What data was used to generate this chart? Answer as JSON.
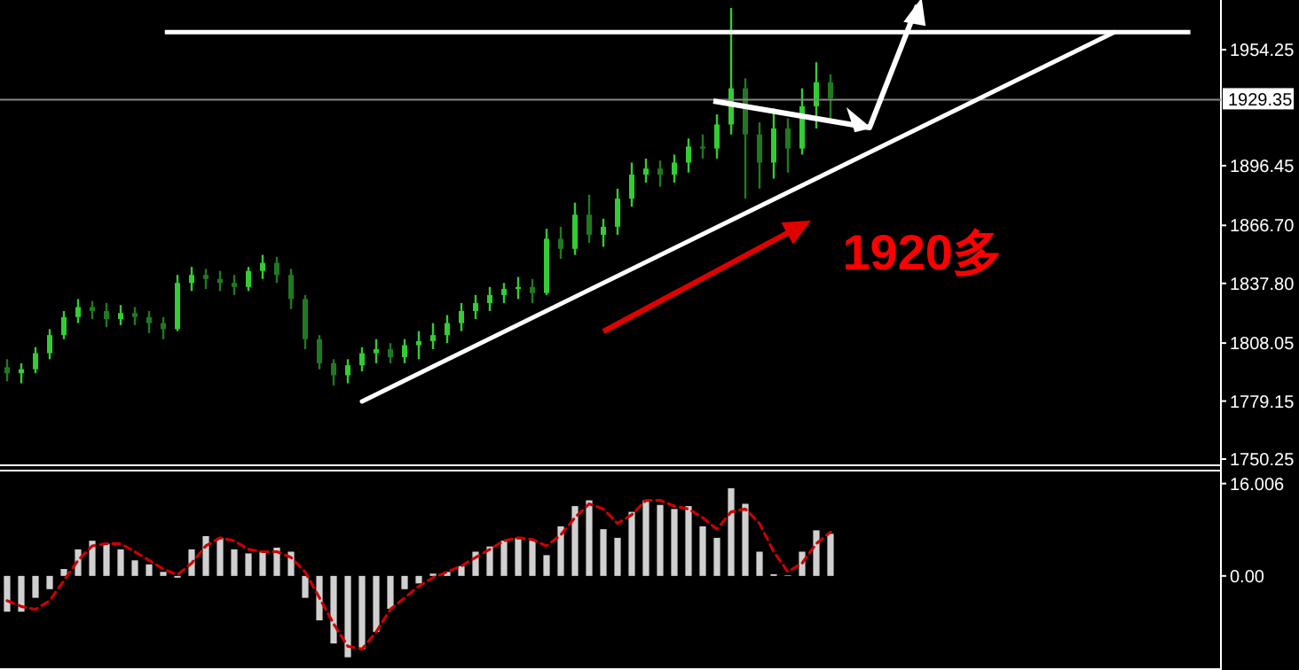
{
  "chart_data": [
    {
      "type": "candlestick",
      "tick_labels": "y",
      "colors": [
        "#1f7a1f",
        "#33cc33",
        "#33cc33",
        "#33cc33",
        "#33cc33",
        "#33cc33",
        "#1f7a1f",
        "#1f7a1f",
        "#33cc33",
        "#1f7a1f",
        "#1f7a1f",
        "#1f7a1f",
        "#33cc33",
        "#33cc33",
        "#1f7a1f",
        "#1f7a1f",
        "#1f7a1f",
        "#33cc33",
        "#33cc33",
        "#1f7a1f",
        "#1f7a1f",
        "#1f7a1f",
        "#1f7a1f",
        "#1f7a1f",
        "#33cc33",
        "#33cc33",
        "#33cc33",
        "#1f7a1f",
        "#33cc33",
        "#33cc33",
        "#33cc33",
        "#33cc33",
        "#33cc33",
        "#33cc33",
        "#33cc33",
        "#33cc33",
        "#33cc33",
        "#1f7a1f",
        "#33cc33",
        "#1f7a1f",
        "#33cc33",
        "#1f7a1f",
        "#33cc33",
        "#33cc33",
        "#33cc33",
        "#33cc33",
        "#1f7a1f",
        "#33cc33",
        "#33cc33",
        "#1f7a1f",
        "#33cc33",
        "#33cc33",
        "#1f7a1f",
        "#1f7a1f",
        "#33cc33",
        "#1f7a1f",
        "#33cc33",
        "#33cc33",
        "#1f7a1f",
        null,
        null,
        null,
        null,
        null,
        null,
        null,
        null,
        null,
        null,
        null,
        null,
        null,
        null,
        null,
        null,
        null,
        null,
        null,
        null,
        null,
        null,
        null,
        null,
        null,
        null,
        null
      ],
      "categories": [
        null,
        null,
        null,
        null,
        null,
        null,
        null,
        null,
        null,
        null,
        null,
        null,
        null,
        null,
        null,
        null,
        null,
        null,
        null,
        null,
        null,
        null,
        null,
        null,
        null,
        null,
        null,
        null,
        null,
        null,
        null,
        null,
        null,
        null,
        null,
        null,
        null,
        null,
        null,
        null,
        null,
        null,
        null,
        null,
        null,
        null,
        null,
        null,
        null,
        null,
        null,
        null,
        null,
        null,
        null,
        null,
        null,
        null,
        null,
        null,
        null,
        null,
        null,
        null,
        null,
        null,
        null,
        null,
        null,
        null,
        null,
        null,
        null,
        null,
        null,
        null,
        null,
        null,
        null,
        null,
        null,
        null,
        null,
        null,
        null,
        null
      ],
      "ohlc": [
        [
          1796,
          1800,
          1789,
          1793
        ],
        [
          1793,
          1798,
          1788,
          1795
        ],
        [
          1795,
          1806,
          1793,
          1803
        ],
        [
          1803,
          1815,
          1800,
          1812
        ],
        [
          1812,
          1824,
          1810,
          1821
        ],
        [
          1821,
          1830,
          1818,
          1826
        ],
        [
          1826,
          1829,
          1820,
          1824
        ],
        [
          1824,
          1828,
          1816,
          1820
        ],
        [
          1820,
          1827,
          1817,
          1823
        ],
        [
          1823,
          1826,
          1817,
          1821
        ],
        [
          1821,
          1824,
          1813,
          1818
        ],
        [
          1818,
          1821,
          1810,
          1815
        ],
        [
          1815,
          1842,
          1814,
          1838
        ],
        [
          1838,
          1846,
          1834,
          1842
        ],
        [
          1842,
          1845,
          1835,
          1840
        ],
        [
          1840,
          1844,
          1834,
          1838
        ],
        [
          1838,
          1842,
          1832,
          1836
        ],
        [
          1836,
          1846,
          1834,
          1844
        ],
        [
          1844,
          1852,
          1840,
          1848
        ],
        [
          1848,
          1851,
          1838,
          1842
        ],
        [
          1842,
          1845,
          1825,
          1830
        ],
        [
          1830,
          1832,
          1805,
          1810
        ],
        [
          1810,
          1812,
          1795,
          1798
        ],
        [
          1798,
          1800,
          1787,
          1792
        ],
        [
          1792,
          1800,
          1788,
          1797
        ],
        [
          1797,
          1806,
          1794,
          1803
        ],
        [
          1803,
          1810,
          1798,
          1805
        ],
        [
          1805,
          1808,
          1798,
          1801
        ],
        [
          1801,
          1810,
          1798,
          1807
        ],
        [
          1807,
          1814,
          1800,
          1809
        ],
        [
          1809,
          1818,
          1805,
          1812
        ],
        [
          1812,
          1822,
          1808,
          1818
        ],
        [
          1818,
          1828,
          1814,
          1824
        ],
        [
          1824,
          1832,
          1820,
          1828
        ],
        [
          1828,
          1836,
          1824,
          1832
        ],
        [
          1832,
          1838,
          1828,
          1835
        ],
        [
          1835,
          1841,
          1830,
          1836
        ],
        [
          1836,
          1840,
          1828,
          1833
        ],
        [
          1833,
          1865,
          1832,
          1860
        ],
        [
          1860,
          1866,
          1850,
          1855
        ],
        [
          1855,
          1878,
          1852,
          1872
        ],
        [
          1872,
          1882,
          1858,
          1862
        ],
        [
          1862,
          1870,
          1856,
          1866
        ],
        [
          1866,
          1885,
          1862,
          1880
        ],
        [
          1880,
          1898,
          1876,
          1892
        ],
        [
          1892,
          1900,
          1888,
          1895
        ],
        [
          1895,
          1899,
          1886,
          1892
        ],
        [
          1892,
          1902,
          1888,
          1898
        ],
        [
          1898,
          1910,
          1893,
          1906
        ],
        [
          1906,
          1912,
          1900,
          1905
        ],
        [
          1905,
          1922,
          1900,
          1917
        ],
        [
          1917,
          1975,
          1912,
          1935
        ],
        [
          1935,
          1940,
          1880,
          1912
        ],
        [
          1912,
          1918,
          1885,
          1898
        ],
        [
          1898,
          1925,
          1890,
          1915
        ],
        [
          1915,
          1920,
          1893,
          1905
        ],
        [
          1905,
          1935,
          1902,
          1926
        ],
        [
          1926,
          1948,
          1915,
          1938
        ],
        [
          1938,
          1942,
          1920,
          1930
        ],
        null,
        null,
        null,
        null,
        null,
        null,
        null,
        null,
        null,
        null,
        null,
        null,
        null,
        null,
        null,
        null,
        null,
        null,
        null,
        null,
        null,
        null,
        null,
        null,
        null,
        null,
        null
      ],
      "ylim": [
        1747.6,
        1979
      ],
      "yticks": [
        {
          "value": 1750.25,
          "label": "1750.25"
        },
        {
          "value": 1779.15,
          "label": "1779.15"
        },
        {
          "value": 1808.05,
          "label": "1808.05"
        },
        {
          "value": 1837.8,
          "label": "1837.80"
        },
        {
          "value": 1866.7,
          "label": "1866.70"
        },
        {
          "value": 1896.45,
          "label": "1896.45"
        },
        {
          "value": 1954.25,
          "label": "1954.25"
        }
      ],
      "ref_lines": [
        {
          "axis": "y",
          "value": 1929.35,
          "label": "1929.35",
          "color": "#888888"
        },
        {
          "axis": "y",
          "value": 1963,
          "color": "#ffffff"
        }
      ],
      "annotations": [
        "1920多"
      ]
    },
    {
      "type": "line",
      "color": "#ffffff",
      "tick_labels": false,
      "categories": [
        null,
        null,
        null,
        null,
        null,
        null,
        null,
        null,
        null,
        null,
        null,
        null,
        null,
        null,
        null,
        null,
        null,
        null,
        null,
        null,
        null,
        null,
        null,
        null,
        null,
        null,
        null,
        null,
        null,
        null,
        null,
        null,
        null,
        null,
        null,
        null,
        null,
        null,
        null,
        null,
        null,
        null,
        null,
        null,
        null,
        null,
        null,
        null,
        null,
        null,
        null,
        null,
        null,
        null,
        null,
        null,
        null,
        null,
        null,
        null,
        null,
        null,
        null,
        null,
        null,
        null,
        null,
        null,
        null,
        null,
        null,
        null,
        null,
        null,
        null,
        null,
        null,
        null,
        null,
        null,
        null,
        null,
        null,
        null,
        null,
        null
      ],
      "values": [
        null,
        null,
        null,
        null,
        null,
        null,
        null,
        null,
        null,
        null,
        null,
        null,
        null,
        null,
        null,
        null,
        null,
        null,
        null,
        null,
        null,
        null,
        null,
        null,
        null,
        1779,
        null,
        null,
        null,
        null,
        null,
        null,
        null,
        null,
        null,
        null,
        null,
        null,
        null,
        null,
        null,
        null,
        null,
        null,
        null,
        null,
        null,
        null,
        null,
        null,
        null,
        null,
        null,
        null,
        null,
        null,
        null,
        null,
        null,
        null,
        null,
        null,
        null,
        null,
        null,
        null,
        null,
        null,
        null,
        null,
        null,
        null,
        null,
        null,
        null,
        null,
        null,
        null,
        1963,
        null,
        null,
        null,
        null,
        null,
        null,
        null
      ],
      "ylim": [
        1747.6,
        1979
      ]
    },
    {
      "type": "bar",
      "color": "#d0d0d0",
      "tick_labels": "y",
      "categories": [
        null,
        null,
        null,
        null,
        null,
        null,
        null,
        null,
        null,
        null,
        null,
        null,
        null,
        null,
        null,
        null,
        null,
        null,
        null,
        null,
        null,
        null,
        null,
        null,
        null,
        null,
        null,
        null,
        null,
        null,
        null,
        null,
        null,
        null,
        null,
        null,
        null,
        null,
        null,
        null,
        null,
        null,
        null,
        null,
        null,
        null,
        null,
        null,
        null,
        null,
        null,
        null,
        null,
        null,
        null,
        null,
        null,
        null,
        null,
        null,
        null,
        null,
        null,
        null,
        null,
        null,
        null,
        null,
        null,
        null,
        null,
        null,
        null,
        null,
        null,
        null,
        null,
        null,
        null,
        null,
        null,
        null,
        null,
        null,
        null,
        null
      ],
      "values": [
        -6.2,
        -6.2,
        -3.8,
        -2.3,
        1.2,
        4.6,
        6.1,
        5.6,
        4.6,
        2.7,
        2.0,
        0.7,
        -0.3,
        4.6,
        6.9,
        6.6,
        4.6,
        3.9,
        4.2,
        4.9,
        4.2,
        -3.8,
        -7.7,
        -11.7,
        -14.1,
        -12.7,
        -9.7,
        -5.7,
        -2.3,
        -1.3,
        0.4,
        0.7,
        1.7,
        4.2,
        5.1,
        6.1,
        6.6,
        6.1,
        3.6,
        8.6,
        12.1,
        13.1,
        8.1,
        6.6,
        11.1,
        13.1,
        12.3,
        11.6,
        12.1,
        8.6,
        6.6,
        15.2,
        12.5,
        4.2,
        0.3,
        0.1,
        4.2,
        7.9,
        7.3,
        null,
        null,
        null,
        null,
        null,
        null,
        null,
        null,
        null,
        null,
        null,
        null,
        null,
        null,
        null,
        null,
        null,
        null,
        null,
        null,
        null,
        null,
        null,
        null,
        null,
        null,
        null
      ],
      "ylim": [
        -16,
        18.1
      ],
      "yticks": [
        {
          "value": 16.006,
          "label": "16.006"
        },
        {
          "value": 0,
          "label": "0.00"
        }
      ]
    },
    {
      "type": "line",
      "color": "#cc0000",
      "line_style": "dashed",
      "tick_labels": false,
      "categories": [
        null,
        null,
        null,
        null,
        null,
        null,
        null,
        null,
        null,
        null,
        null,
        null,
        null,
        null,
        null,
        null,
        null,
        null,
        null,
        null,
        null,
        null,
        null,
        null,
        null,
        null,
        null,
        null,
        null,
        null,
        null,
        null,
        null,
        null,
        null,
        null,
        null,
        null,
        null,
        null,
        null,
        null,
        null,
        null,
        null,
        null,
        null,
        null,
        null,
        null,
        null,
        null,
        null,
        null,
        null,
        null,
        null,
        null,
        null,
        null,
        null,
        null,
        null,
        null,
        null,
        null,
        null,
        null,
        null,
        null,
        null,
        null,
        null,
        null,
        null,
        null,
        null,
        null,
        null,
        null,
        null,
        null,
        null,
        null,
        null,
        null
      ],
      "values": [
        -4.3,
        -5.3,
        -5.8,
        -4.3,
        -0.8,
        2.7,
        5.2,
        5.6,
        5.6,
        4.2,
        2.7,
        1.2,
        0.2,
        2.2,
        5.2,
        6.6,
        6.1,
        4.6,
        4.2,
        4.2,
        3.2,
        0.7,
        -3.8,
        -8.3,
        -12.2,
        -12.7,
        -9.7,
        -5.8,
        -3.8,
        -1.8,
        -0.3,
        0.7,
        1.7,
        3.2,
        4.6,
        6.1,
        6.6,
        6.3,
        5.2,
        7.1,
        10.1,
        12.5,
        11.6,
        9.1,
        10.6,
        13.1,
        13.1,
        12.1,
        11.6,
        10.1,
        8.1,
        11.1,
        11.6,
        9.1,
        4.2,
        0.7,
        2.2,
        5.6,
        7.6,
        null,
        null,
        null,
        null,
        null,
        null,
        null,
        null,
        null,
        null,
        null,
        null,
        null,
        null,
        null,
        null,
        null,
        null,
        null,
        null,
        null,
        null,
        null,
        null,
        null,
        null,
        null
      ],
      "ylim": [
        -16,
        18.1
      ]
    }
  ]
}
